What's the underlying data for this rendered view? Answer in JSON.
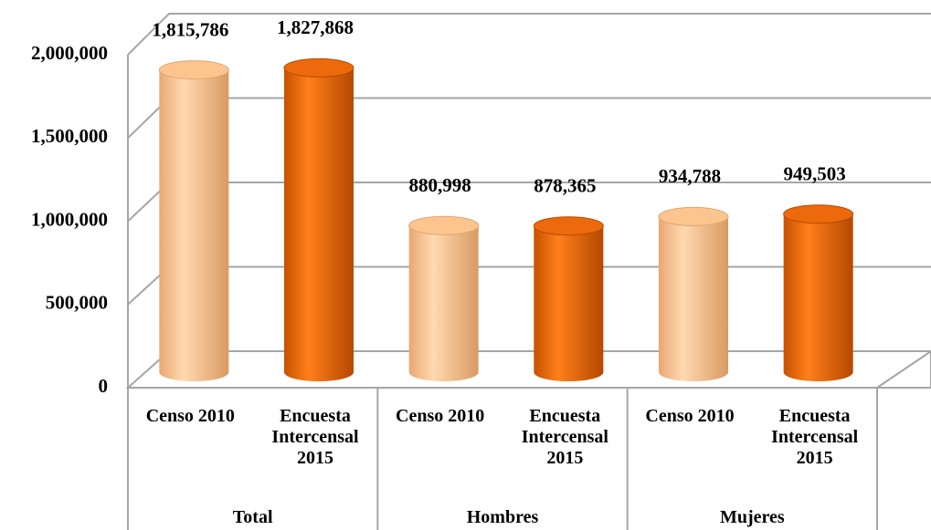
{
  "chart_data": {
    "type": "bar3d",
    "categories": [
      "Censo 2010",
      "Encuesta Intercensal 2015",
      "Censo 2010",
      "Encuesta Intercensal 2015",
      "Censo 2010",
      "Encuesta Intercensal 2015"
    ],
    "groups": [
      "Total",
      "Hombres",
      "Mujeres"
    ],
    "values": [
      1815786,
      1827868,
      880998,
      878365,
      934788,
      949503
    ],
    "value_labels": [
      "1,815,786",
      "1,827,868",
      "880,998",
      "878,365",
      "934,788",
      "949,503"
    ],
    "colors": [
      "#fcc590",
      "#ec6a0c"
    ],
    "ylim": [
      0,
      2000000
    ],
    "yticks": [
      0,
      {
        "value": 500000,
        "label": "500,000"
      },
      {
        "value": 1000000,
        "label": "1,000,000"
      },
      {
        "value": 1500000,
        "label": "1,500,000"
      },
      {
        "value": 2000000,
        "label": "2,000,000"
      }
    ],
    "grid": true
  }
}
